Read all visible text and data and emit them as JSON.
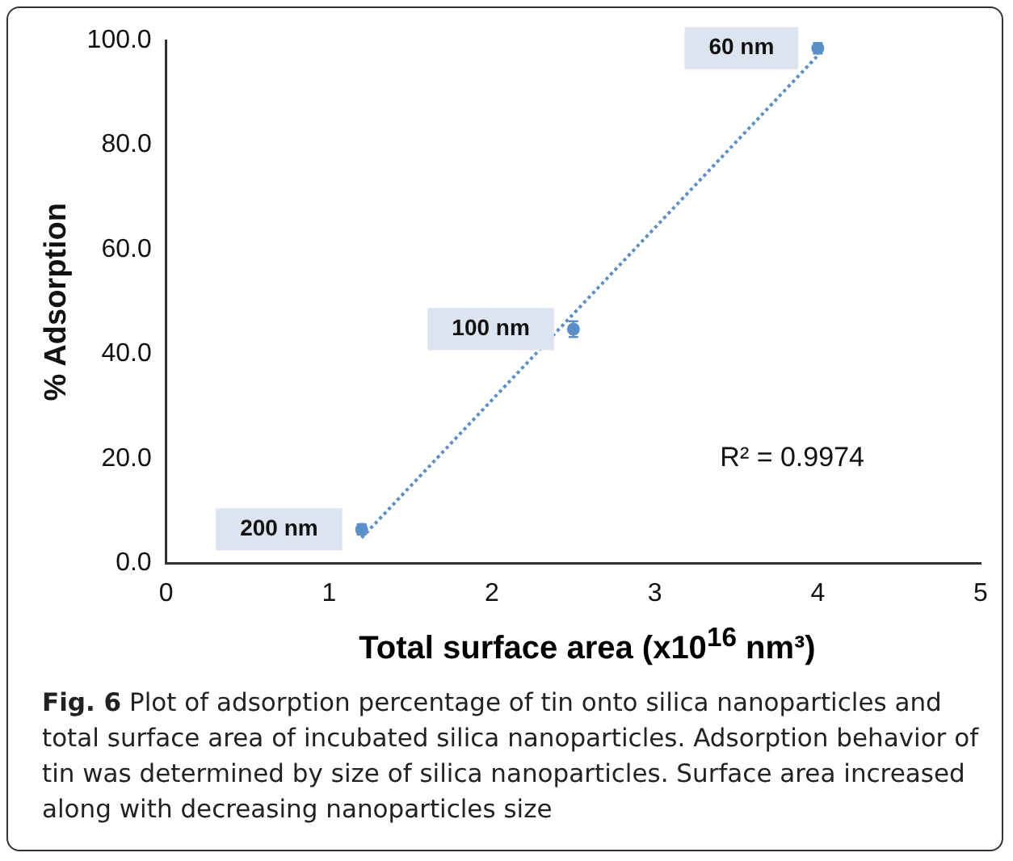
{
  "chart_data": {
    "type": "scatter",
    "xlabel": "Total surface area (x10$^{16}$ nm³)",
    "ylabel": "% Adsorption",
    "xlim": [
      0,
      5
    ],
    "xticks": [
      0,
      1,
      2,
      3,
      4,
      5
    ],
    "ylim": [
      0,
      100
    ],
    "yticks": [
      {
        "value": 0,
        "label": "0.0"
      },
      {
        "value": 20,
        "label": "20.0"
      },
      {
        "value": 40,
        "label": "40.0"
      },
      {
        "value": 60,
        "label": "60.0"
      },
      {
        "value": 80,
        "label": "80.0"
      },
      {
        "value": 100,
        "label": "100.0"
      }
    ],
    "series": [
      {
        "color": "#5b8fc9",
        "marker": "circle",
        "x": [
          1.2,
          2.5,
          4.0
        ],
        "values": [
          6.5,
          44.8,
          98.5
        ],
        "errors": [
          1,
          1.5,
          1
        ]
      },
      {
        "type": "line",
        "color": "#5b8fc9",
        "marker": "none",
        "line_style": "dotted",
        "x": [
          1.2,
          4.0
        ],
        "values": [
          4.9,
          97.1
        ]
      }
    ],
    "annotations": [
      {
        "text": "200 nm",
        "x": 1.2,
        "y": 6.5
      },
      {
        "text": "100 nm",
        "x": 2.5,
        "y": 44.8
      },
      {
        "text": "60 nm",
        "x": 4.0,
        "y": 98.5
      },
      "R² = 0.9974",
      "Fig. 6",
      "Plot of adsorption percentage of tin onto silica nanoparticles and total surface area of incubated silica nanoparticles. Adsorption behavior of tin was determined by size of silica nanoparticles. Surface area increased along with decreasing nanoparticles size"
    ]
  }
}
